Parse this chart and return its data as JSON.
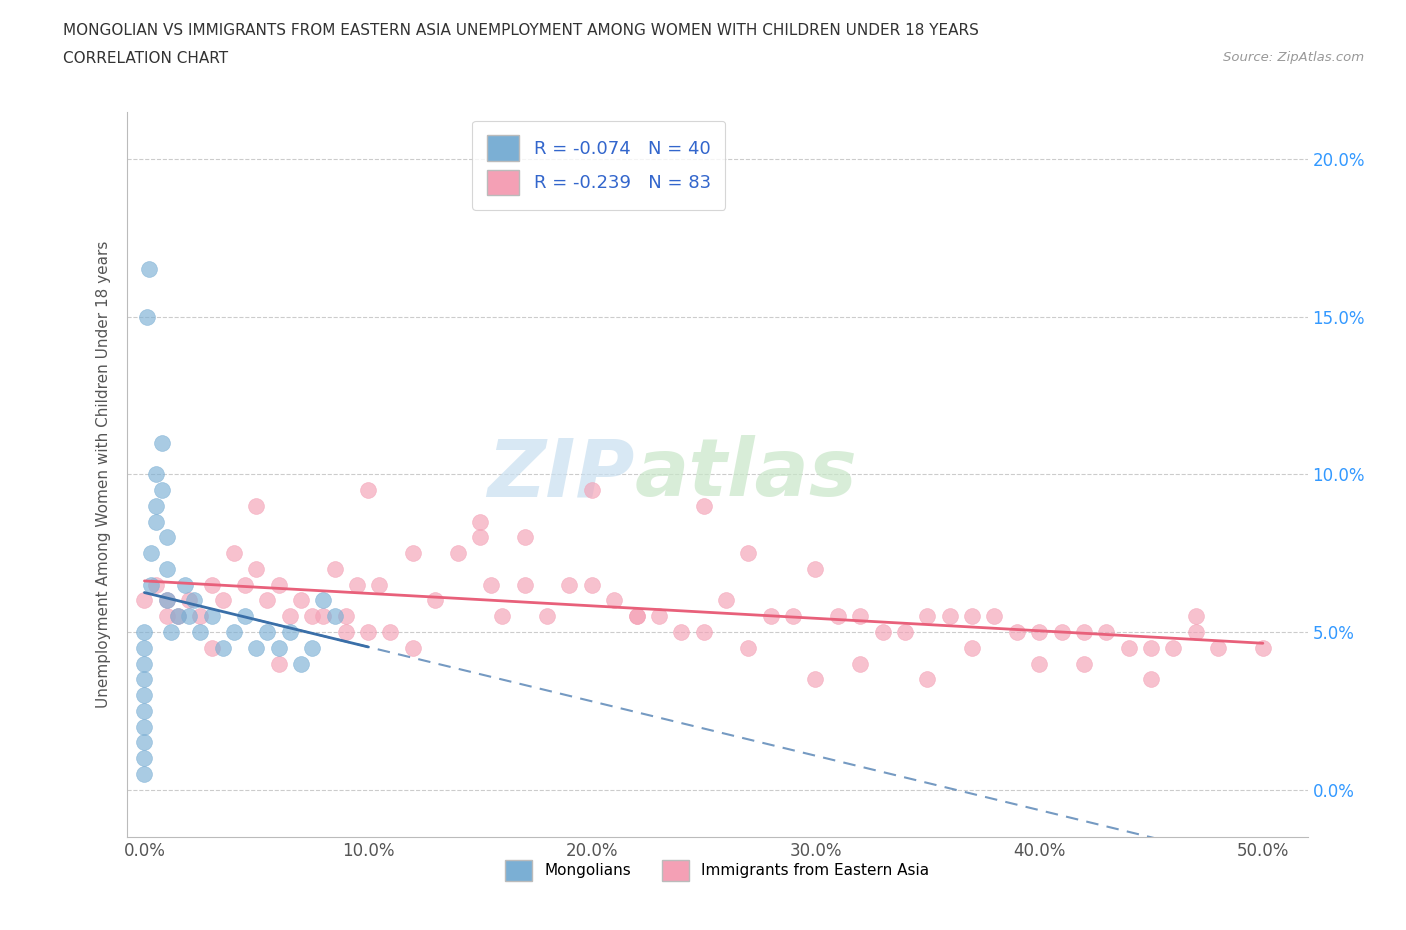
{
  "title_line1": "MONGOLIAN VS IMMIGRANTS FROM EASTERN ASIA UNEMPLOYMENT AMONG WOMEN WITH CHILDREN UNDER 18 YEARS",
  "title_line2": "CORRELATION CHART",
  "source": "Source: ZipAtlas.com",
  "ylabel": "Unemployment Among Women with Children Under 18 years",
  "mongolian_R": -0.074,
  "mongolian_N": 40,
  "eastern_asia_R": -0.239,
  "eastern_asia_N": 83,
  "mongolian_color": "#7BAFD4",
  "eastern_asia_color": "#F4A0B5",
  "mongolian_line_color": "#3A6FA8",
  "eastern_asia_line_color": "#E8607A",
  "legend_label_1": "Mongolians",
  "legend_label_2": "Immigrants from Eastern Asia",
  "mon_x": [
    0.0,
    0.0,
    0.0,
    0.0,
    0.0,
    0.0,
    0.0,
    0.0,
    0.0,
    0.0,
    0.3,
    0.3,
    0.5,
    0.5,
    0.5,
    0.8,
    0.8,
    1.0,
    1.0,
    1.0,
    1.2,
    1.5,
    1.8,
    2.0,
    2.2,
    2.5,
    3.0,
    3.5,
    4.0,
    4.5,
    5.0,
    5.5,
    6.0,
    6.5,
    7.0,
    7.5,
    8.0,
    8.5,
    0.1,
    0.2
  ],
  "mon_y": [
    0.5,
    1.0,
    1.5,
    2.0,
    2.5,
    3.0,
    3.5,
    4.0,
    4.5,
    5.0,
    6.5,
    7.5,
    8.5,
    9.0,
    10.0,
    9.5,
    11.0,
    7.0,
    8.0,
    6.0,
    5.0,
    5.5,
    6.5,
    5.5,
    6.0,
    5.0,
    5.5,
    4.5,
    5.0,
    5.5,
    4.5,
    5.0,
    4.5,
    5.0,
    4.0,
    4.5,
    6.0,
    5.5,
    15.0,
    16.5
  ],
  "ea_x": [
    0.5,
    1.0,
    1.5,
    2.0,
    2.5,
    3.0,
    3.5,
    4.0,
    4.5,
    5.0,
    5.5,
    6.0,
    6.5,
    7.0,
    7.5,
    8.0,
    8.5,
    9.0,
    9.5,
    10.0,
    10.5,
    11.0,
    12.0,
    13.0,
    14.0,
    15.0,
    15.5,
    16.0,
    17.0,
    18.0,
    19.0,
    20.0,
    21.0,
    22.0,
    23.0,
    24.0,
    25.0,
    26.0,
    27.0,
    28.0,
    29.0,
    30.0,
    31.0,
    32.0,
    33.0,
    34.0,
    35.0,
    36.0,
    37.0,
    38.0,
    39.0,
    40.0,
    41.0,
    42.0,
    43.0,
    44.0,
    45.0,
    46.0,
    47.0,
    48.0,
    50.0,
    5.0,
    10.0,
    15.0,
    20.0,
    25.0,
    30.0,
    35.0,
    40.0,
    45.0,
    3.0,
    6.0,
    9.0,
    12.0,
    17.0,
    22.0,
    27.0,
    32.0,
    37.0,
    42.0,
    47.0,
    0.0,
    1.0
  ],
  "ea_y": [
    6.5,
    6.0,
    5.5,
    6.0,
    5.5,
    6.5,
    6.0,
    7.5,
    6.5,
    7.0,
    6.0,
    6.5,
    5.5,
    6.0,
    5.5,
    5.5,
    7.0,
    5.0,
    6.5,
    5.0,
    6.5,
    5.0,
    7.5,
    6.0,
    7.5,
    8.0,
    6.5,
    5.5,
    6.5,
    5.5,
    6.5,
    6.5,
    6.0,
    5.5,
    5.5,
    5.0,
    5.0,
    6.0,
    7.5,
    5.5,
    5.5,
    7.0,
    5.5,
    5.5,
    5.0,
    5.0,
    5.5,
    5.5,
    5.5,
    5.5,
    5.0,
    5.0,
    5.0,
    5.0,
    5.0,
    4.5,
    4.5,
    4.5,
    5.0,
    4.5,
    4.5,
    9.0,
    9.5,
    8.5,
    9.5,
    9.0,
    3.5,
    3.5,
    4.0,
    3.5,
    4.5,
    4.0,
    5.5,
    4.5,
    8.0,
    5.5,
    4.5,
    4.0,
    4.5,
    4.0,
    5.5,
    6.0,
    5.5
  ]
}
